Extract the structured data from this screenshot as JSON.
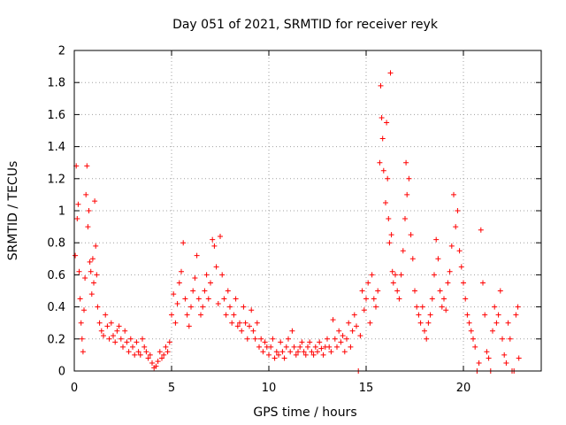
{
  "chart_data": {
    "type": "scatter",
    "title": "Day 051 of 2021, SRMTID for receiver reyk",
    "xlabel": "GPS time / hours",
    "ylabel": "SRMTID / TECUs",
    "xlim": [
      0,
      24
    ],
    "ylim": [
      0,
      2
    ],
    "xticks": [
      0,
      5,
      10,
      15,
      20
    ],
    "yticks": [
      0,
      0.2,
      0.4,
      0.6,
      0.8,
      1,
      1.2,
      1.4,
      1.6,
      1.8,
      2
    ],
    "ytick_labels": [
      "0",
      "0.2",
      "0.4",
      "0.6",
      "0.8",
      "1",
      "1.2",
      "1.4",
      "1.6",
      "1.8",
      "2"
    ],
    "grid": true,
    "marker": "+",
    "series": [
      {
        "name": "SRMTID",
        "color": "#ff0000",
        "points": [
          [
            0.05,
            0.72
          ],
          [
            0.1,
            1.28
          ],
          [
            0.15,
            0.95
          ],
          [
            0.2,
            1.04
          ],
          [
            0.25,
            0.62
          ],
          [
            0.3,
            0.45
          ],
          [
            0.35,
            0.3
          ],
          [
            0.4,
            0.2
          ],
          [
            0.45,
            0.12
          ],
          [
            0.5,
            0.38
          ],
          [
            0.55,
            0.58
          ],
          [
            0.6,
            1.1
          ],
          [
            0.65,
            1.28
          ],
          [
            0.7,
            0.9
          ],
          [
            0.75,
            1.0
          ],
          [
            0.8,
            0.68
          ],
          [
            0.85,
            0.62
          ],
          [
            0.9,
            0.48
          ],
          [
            0.95,
            0.7
          ],
          [
            1.0,
            0.55
          ],
          [
            1.05,
            1.06
          ],
          [
            1.1,
            0.78
          ],
          [
            1.15,
            0.6
          ],
          [
            1.2,
            0.4
          ],
          [
            1.3,
            0.3
          ],
          [
            1.4,
            0.25
          ],
          [
            1.5,
            0.22
          ],
          [
            1.6,
            0.35
          ],
          [
            1.7,
            0.28
          ],
          [
            1.8,
            0.2
          ],
          [
            1.9,
            0.3
          ],
          [
            2.0,
            0.22
          ],
          [
            2.1,
            0.18
          ],
          [
            2.2,
            0.25
          ],
          [
            2.3,
            0.28
          ],
          [
            2.4,
            0.2
          ],
          [
            2.5,
            0.15
          ],
          [
            2.6,
            0.25
          ],
          [
            2.7,
            0.18
          ],
          [
            2.8,
            0.12
          ],
          [
            2.9,
            0.2
          ],
          [
            3.0,
            0.15
          ],
          [
            3.1,
            0.1
          ],
          [
            3.2,
            0.18
          ],
          [
            3.3,
            0.12
          ],
          [
            3.4,
            0.1
          ],
          [
            3.5,
            0.2
          ],
          [
            3.6,
            0.15
          ],
          [
            3.7,
            0.12
          ],
          [
            3.8,
            0.08
          ],
          [
            3.9,
            0.1
          ],
          [
            4.0,
            0.05
          ],
          [
            4.1,
            0.02
          ],
          [
            4.2,
            0.03
          ],
          [
            4.3,
            0.06
          ],
          [
            4.4,
            0.12
          ],
          [
            4.5,
            0.08
          ],
          [
            4.6,
            0.1
          ],
          [
            4.7,
            0.15
          ],
          [
            4.8,
            0.12
          ],
          [
            4.9,
            0.18
          ],
          [
            5.0,
            0.35
          ],
          [
            5.1,
            0.48
          ],
          [
            5.2,
            0.3
          ],
          [
            5.3,
            0.42
          ],
          [
            5.4,
            0.55
          ],
          [
            5.5,
            0.62
          ],
          [
            5.6,
            0.8
          ],
          [
            5.7,
            0.45
          ],
          [
            5.8,
            0.35
          ],
          [
            5.9,
            0.28
          ],
          [
            6.0,
            0.4
          ],
          [
            6.1,
            0.5
          ],
          [
            6.2,
            0.58
          ],
          [
            6.3,
            0.72
          ],
          [
            6.4,
            0.45
          ],
          [
            6.5,
            0.35
          ],
          [
            6.6,
            0.4
          ],
          [
            6.7,
            0.5
          ],
          [
            6.8,
            0.6
          ],
          [
            6.9,
            0.45
          ],
          [
            7.0,
            0.55
          ],
          [
            7.1,
            0.82
          ],
          [
            7.2,
            0.78
          ],
          [
            7.3,
            0.65
          ],
          [
            7.4,
            0.42
          ],
          [
            7.5,
            0.84
          ],
          [
            7.6,
            0.6
          ],
          [
            7.7,
            0.45
          ],
          [
            7.8,
            0.35
          ],
          [
            7.9,
            0.5
          ],
          [
            8.0,
            0.4
          ],
          [
            8.1,
            0.3
          ],
          [
            8.2,
            0.35
          ],
          [
            8.3,
            0.45
          ],
          [
            8.4,
            0.28
          ],
          [
            8.5,
            0.3
          ],
          [
            8.6,
            0.25
          ],
          [
            8.7,
            0.4
          ],
          [
            8.8,
            0.3
          ],
          [
            8.9,
            0.2
          ],
          [
            9.0,
            0.28
          ],
          [
            9.1,
            0.38
          ],
          [
            9.2,
            0.25
          ],
          [
            9.3,
            0.2
          ],
          [
            9.4,
            0.3
          ],
          [
            9.5,
            0.15
          ],
          [
            9.6,
            0.2
          ],
          [
            9.7,
            0.12
          ],
          [
            9.8,
            0.18
          ],
          [
            9.9,
            0.15
          ],
          [
            10.0,
            0.1
          ],
          [
            10.1,
            0.15
          ],
          [
            10.2,
            0.2
          ],
          [
            10.3,
            0.08
          ],
          [
            10.4,
            0.12
          ],
          [
            10.5,
            0.1
          ],
          [
            10.6,
            0.18
          ],
          [
            10.7,
            0.12
          ],
          [
            10.8,
            0.08
          ],
          [
            10.9,
            0.15
          ],
          [
            11.0,
            0.2
          ],
          [
            11.1,
            0.12
          ],
          [
            11.2,
            0.25
          ],
          [
            11.3,
            0.15
          ],
          [
            11.4,
            0.1
          ],
          [
            11.5,
            0.12
          ],
          [
            11.6,
            0.15
          ],
          [
            11.7,
            0.18
          ],
          [
            11.8,
            0.12
          ],
          [
            11.9,
            0.1
          ],
          [
            12.0,
            0.15
          ],
          [
            12.1,
            0.18
          ],
          [
            12.2,
            0.12
          ],
          [
            12.3,
            0.1
          ],
          [
            12.4,
            0.15
          ],
          [
            12.5,
            0.12
          ],
          [
            12.6,
            0.18
          ],
          [
            12.7,
            0.14
          ],
          [
            12.8,
            0.1
          ],
          [
            12.9,
            0.15
          ],
          [
            13.0,
            0.2
          ],
          [
            13.1,
            0.15
          ],
          [
            13.2,
            0.12
          ],
          [
            13.3,
            0.32
          ],
          [
            13.4,
            0.2
          ],
          [
            13.5,
            0.15
          ],
          [
            13.6,
            0.25
          ],
          [
            13.7,
            0.18
          ],
          [
            13.8,
            0.22
          ],
          [
            13.9,
            0.12
          ],
          [
            14.0,
            0.2
          ],
          [
            14.1,
            0.3
          ],
          [
            14.2,
            0.15
          ],
          [
            14.3,
            0.25
          ],
          [
            14.4,
            0.35
          ],
          [
            14.5,
            0.28
          ],
          [
            14.6,
            0.0
          ],
          [
            14.7,
            0.22
          ],
          [
            14.8,
            0.5
          ],
          [
            14.9,
            0.38
          ],
          [
            15.0,
            0.45
          ],
          [
            15.1,
            0.55
          ],
          [
            15.2,
            0.3
          ],
          [
            15.3,
            0.6
          ],
          [
            15.4,
            0.45
          ],
          [
            15.5,
            0.4
          ],
          [
            15.6,
            0.5
          ],
          [
            15.7,
            1.3
          ],
          [
            15.75,
            1.78
          ],
          [
            15.8,
            1.58
          ],
          [
            15.85,
            1.45
          ],
          [
            15.9,
            1.25
          ],
          [
            16.0,
            1.05
          ],
          [
            16.05,
            1.55
          ],
          [
            16.1,
            1.2
          ],
          [
            16.15,
            0.95
          ],
          [
            16.2,
            0.8
          ],
          [
            16.25,
            1.86
          ],
          [
            16.3,
            0.85
          ],
          [
            16.35,
            0.62
          ],
          [
            16.4,
            0.55
          ],
          [
            16.5,
            0.6
          ],
          [
            16.6,
            0.5
          ],
          [
            16.7,
            0.45
          ],
          [
            16.8,
            0.6
          ],
          [
            16.9,
            0.75
          ],
          [
            17.0,
            0.95
          ],
          [
            17.05,
            1.3
          ],
          [
            17.1,
            1.1
          ],
          [
            17.2,
            1.2
          ],
          [
            17.3,
            0.85
          ],
          [
            17.4,
            0.7
          ],
          [
            17.5,
            0.5
          ],
          [
            17.6,
            0.4
          ],
          [
            17.7,
            0.35
          ],
          [
            17.8,
            0.3
          ],
          [
            17.9,
            0.4
          ],
          [
            18.0,
            0.25
          ],
          [
            18.1,
            0.2
          ],
          [
            18.2,
            0.3
          ],
          [
            18.3,
            0.35
          ],
          [
            18.4,
            0.45
          ],
          [
            18.5,
            0.6
          ],
          [
            18.6,
            0.82
          ],
          [
            18.7,
            0.7
          ],
          [
            18.8,
            0.5
          ],
          [
            18.9,
            0.4
          ],
          [
            19.0,
            0.45
          ],
          [
            19.1,
            0.38
          ],
          [
            19.2,
            0.55
          ],
          [
            19.3,
            0.62
          ],
          [
            19.4,
            0.78
          ],
          [
            19.5,
            1.1
          ],
          [
            19.6,
            0.9
          ],
          [
            19.7,
            1.0
          ],
          [
            19.8,
            0.75
          ],
          [
            19.9,
            0.65
          ],
          [
            20.0,
            0.55
          ],
          [
            20.1,
            0.45
          ],
          [
            20.2,
            0.35
          ],
          [
            20.3,
            0.3
          ],
          [
            20.4,
            0.25
          ],
          [
            20.5,
            0.2
          ],
          [
            20.6,
            0.15
          ],
          [
            20.7,
            0.0
          ],
          [
            20.8,
            0.05
          ],
          [
            20.9,
            0.88
          ],
          [
            21.0,
            0.55
          ],
          [
            21.1,
            0.35
          ],
          [
            21.2,
            0.12
          ],
          [
            21.3,
            0.08
          ],
          [
            21.4,
            0.0
          ],
          [
            21.5,
            0.25
          ],
          [
            21.6,
            0.4
          ],
          [
            21.7,
            0.3
          ],
          [
            21.8,
            0.35
          ],
          [
            21.9,
            0.5
          ],
          [
            22.0,
            0.2
          ],
          [
            22.1,
            0.1
          ],
          [
            22.2,
            0.05
          ],
          [
            22.3,
            0.3
          ],
          [
            22.4,
            0.2
          ],
          [
            22.5,
            0.0
          ],
          [
            22.6,
            0.0
          ],
          [
            22.7,
            0.35
          ],
          [
            22.8,
            0.4
          ],
          [
            22.85,
            0.08
          ]
        ]
      }
    ]
  }
}
